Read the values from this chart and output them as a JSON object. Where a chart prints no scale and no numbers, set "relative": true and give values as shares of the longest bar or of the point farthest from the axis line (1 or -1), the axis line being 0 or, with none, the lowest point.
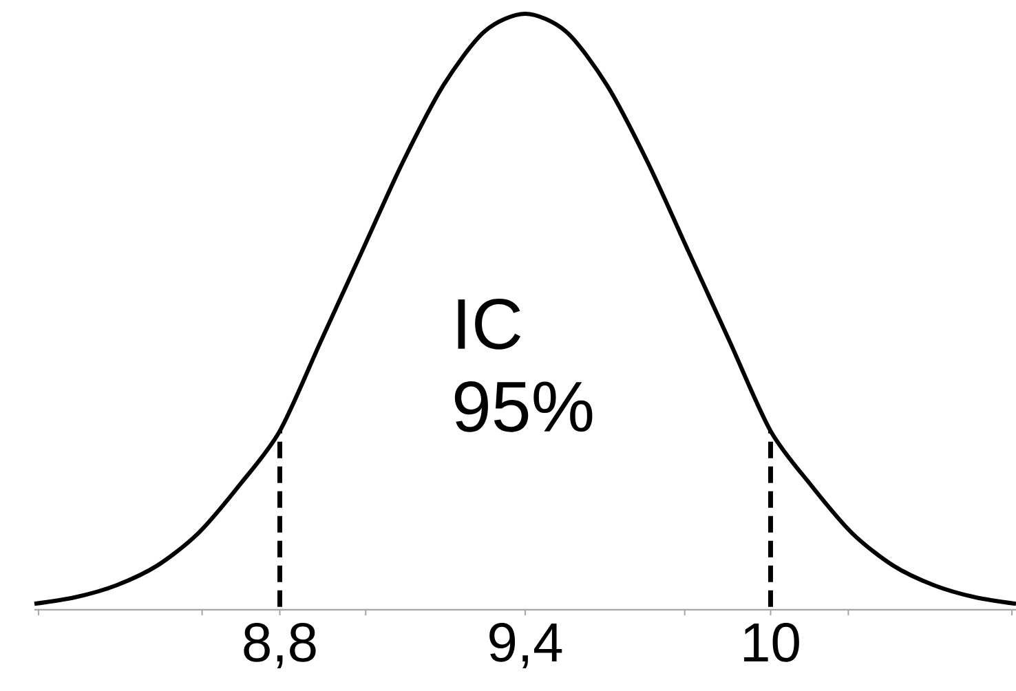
{
  "chart_data": {
    "type": "line",
    "relative": true,
    "x": [
      8.2,
      8.3,
      8.4,
      8.5,
      8.6,
      8.7,
      8.8,
      8.9,
      9.0,
      9.1,
      9.2,
      9.3,
      9.4,
      9.5,
      9.6,
      9.7,
      9.8,
      9.9,
      10.0,
      10.1,
      10.2,
      10.3,
      10.4,
      10.5,
      10.6
    ],
    "series": [
      {
        "color": "#000000",
        "values": [
          0.01,
          0.021,
          0.041,
          0.074,
          0.128,
          0.208,
          0.3,
          0.45,
          0.6,
          0.75,
          0.88,
          0.97,
          1,
          0.97,
          0.88,
          0.75,
          0.6,
          0.45,
          0.3,
          0.208,
          0.128,
          0.074,
          0.041,
          0.021,
          0.01
        ]
      }
    ],
    "xlim": [
      8.2,
      10.6
    ],
    "xticks": [
      {
        "value": 8.21,
        "label": null
      },
      {
        "value": 8.61,
        "label": null
      },
      {
        "value": 8.8,
        "label": "8,8"
      },
      {
        "value": 9.01,
        "label": null
      },
      {
        "value": 9.4,
        "label": "9,4"
      },
      {
        "value": 9.79,
        "label": null
      },
      {
        "value": 10,
        "label": "10"
      },
      {
        "value": 10.19,
        "label": null
      },
      {
        "value": 10.59,
        "label": null
      }
    ],
    "ref_lines": [
      {
        "axis": "x",
        "value": 8.8,
        "line_style": "dashed",
        "color": "#000000"
      },
      {
        "axis": "x",
        "value": 10,
        "line_style": "dashed",
        "color": "#000000"
      }
    ],
    "annotations": [
      "IC 95%"
    ],
    "line_style": "solid",
    "marker": "none"
  }
}
